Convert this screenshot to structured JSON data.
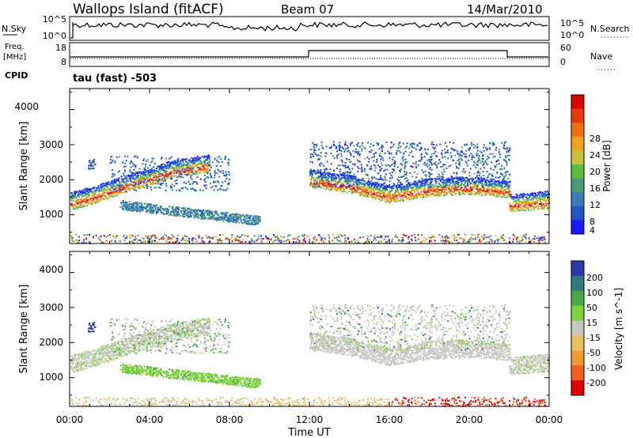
{
  "header": {
    "station": "Wallops Island (fitACF)",
    "beam": "Beam 07",
    "date": "14/Mar/2010"
  },
  "noise_panel": {
    "left_label": "N.Sky",
    "left_ticks": [
      "10^5",
      "10^0"
    ],
    "right_label": "N.Search",
    "right_ticks": [
      "10^5",
      "10^0"
    ]
  },
  "freq_panel": {
    "left_label_1": "Freq.",
    "left_label_2": "[MHz]",
    "left_ticks": [
      "18",
      "8"
    ],
    "right_label": "Nave",
    "right_ticks": [
      "60",
      "0"
    ]
  },
  "cpid": {
    "label": "CPID",
    "value": "tau (fast) -503"
  },
  "x_axis": {
    "label": "Time UT",
    "ticks": [
      "00:00",
      "04:00",
      "08:00",
      "12:00",
      "16:00",
      "20:00",
      "00:00"
    ]
  },
  "power_panel": {
    "ylabel": "Slant Range [km]",
    "yticks": [
      "1000",
      "2000",
      "3000",
      "4000"
    ],
    "colorbar_label": "Power [dB]",
    "colorbar_ticks": [
      "4",
      "8",
      "12",
      "16",
      "20",
      "24",
      "28"
    ],
    "colorbar_colors": [
      "#1a1aff",
      "#2255cc",
      "#3a7dbd",
      "#4a9a7a",
      "#5cbf3c",
      "#c7c23a",
      "#f0a21f",
      "#f07010",
      "#e83a0a",
      "#dd0000"
    ]
  },
  "velocity_panel": {
    "ylabel": "Slant Range [km]",
    "yticks": [
      "1000",
      "2000",
      "3000",
      "4000"
    ],
    "colorbar_label": "Velocity [m s^-1]",
    "colorbar_ticks": [
      "200",
      "100",
      "50",
      "15",
      "-15",
      "-50",
      "-100",
      "-200"
    ],
    "colorbar_colors": [
      "#2a3aa8",
      "#2f7a7a",
      "#49a84a",
      "#7ed23a",
      "#c8c8c0",
      "#e8c060",
      "#f09a30",
      "#f06020",
      "#e00000"
    ]
  },
  "chart_data": [
    {
      "type": "heatmap",
      "title": "Power",
      "xlabel": "Time UT",
      "ylabel": "Slant Range [km]",
      "xlim": [
        0,
        24
      ],
      "ylim": [
        180,
        4600
      ],
      "colorbar_label": "Power [dB]",
      "features": [
        {
          "name": "band",
          "t": [
            0,
            1,
            2,
            3,
            4,
            5,
            6,
            7
          ],
          "r": [
            1300,
            1450,
            1650,
            1850,
            2000,
            2200,
            2300,
            2400
          ]
        },
        {
          "name": "band",
          "t": [
            12,
            14,
            16,
            18,
            20,
            22
          ],
          "r": [
            1950,
            1800,
            1500,
            1700,
            1750,
            1650
          ]
        },
        {
          "name": "band",
          "t": [
            22,
            23,
            24
          ],
          "r": [
            1250,
            1300,
            1350
          ]
        }
      ]
    },
    {
      "type": "heatmap",
      "title": "Velocity",
      "xlabel": "Time UT",
      "ylabel": "Slant Range [km]",
      "xlim": [
        0,
        24
      ],
      "ylim": [
        180,
        4600
      ],
      "colorbar_label": "Velocity [m s^-1]"
    }
  ]
}
